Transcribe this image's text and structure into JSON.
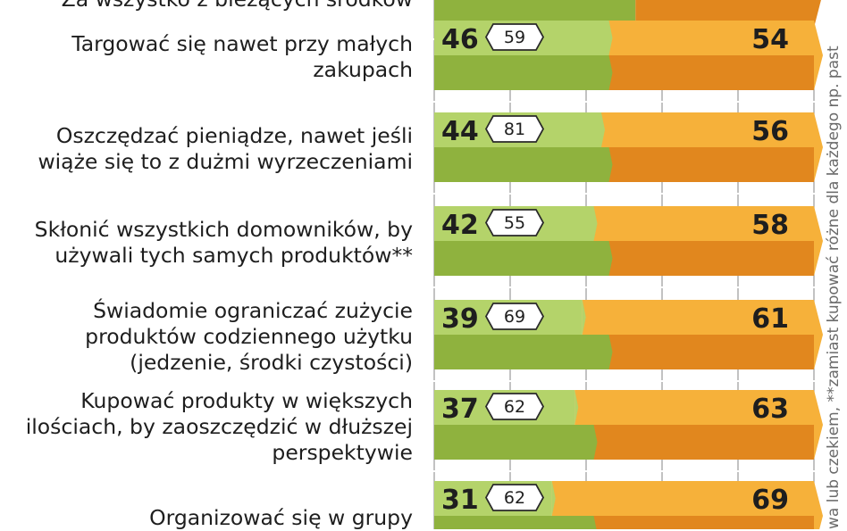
{
  "colors": {
    "green_light": "#b4d36a",
    "green_dark": "#8fb23e",
    "orange_light": "#f6b13a",
    "orange_dark": "#e1871e",
    "text": "#1e1e1e",
    "grid": "#9a9a9a",
    "note": "#6a6a6a"
  },
  "chart_data": {
    "type": "bar",
    "orientation": "horizontal",
    "stacked": true,
    "xlim": [
      0,
      100
    ],
    "categories": [
      "Za wszystko z bieżących środków",
      "Targować się nawet przy małych zakupach",
      "Oszczędzać pieniądze, nawet jeśli wiąże się to z dużmi wyrzeczeniami",
      "Skłonić wszystkich domowników, by używali tych samych produktów**",
      "Świadomie ograniczać zużycie produktów codziennego użytku (jedzenie, środki czystości)",
      "Kupować produkty w większych ilościach, by zaoszczędzić w dłuższej perspektywie",
      "Organizować się w grupy"
    ],
    "label_lines": [
      [
        "Za wszystko z bieżących środków"
      ],
      [
        "Targować się nawet przy małych",
        "zakupach"
      ],
      [
        "Oszczędzać pieniądze, nawet jeśli",
        "wiąże się to z dużmi wyrzeczeniami"
      ],
      [
        "Skłonić wszystkich domowników, by",
        "używali tych samych produktów**"
      ],
      [
        "Świadomie ograniczać zużycie",
        "produktów codziennego użytku",
        "(jedzenie, środki czystości)"
      ],
      [
        "Kupować produkty w większych",
        "ilościach, by zaoszczędzić w dłuższej",
        "perspektywie"
      ],
      [
        "Organizować się w grupy"
      ]
    ],
    "series": [
      {
        "name": "green",
        "values": [
          null,
          46,
          44,
          42,
          39,
          37,
          31
        ]
      },
      {
        "name": "orange",
        "values": [
          null,
          54,
          56,
          58,
          61,
          63,
          69
        ]
      }
    ],
    "lower_band_green": [
      null,
      46,
      46,
      46,
      46,
      42,
      42
    ],
    "badges": [
      null,
      "59",
      "81",
      "55",
      "69",
      "62",
      "62"
    ],
    "footnote": "wa lub czekiem, **zamiast kupować różne dla każdego np. past"
  }
}
